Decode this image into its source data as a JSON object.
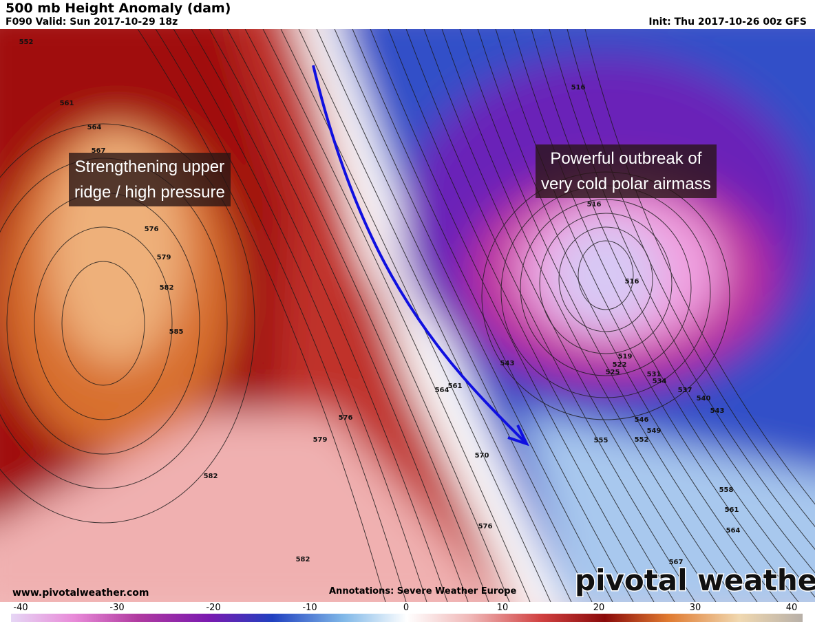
{
  "header": {
    "title": "500 mb Height Anomaly (dam)",
    "valid": "F090 Valid: Sun 2017-10-29 18z",
    "init": "Init: Thu 2017-10-26 00z GFS"
  },
  "map": {
    "contour_labels": [
      552,
      561,
      564,
      567,
      576,
      579,
      582,
      585,
      576,
      579,
      582,
      570,
      576,
      582,
      516,
      516,
      516,
      519,
      522,
      525,
      531,
      534,
      537,
      540,
      543,
      543,
      546,
      549,
      552,
      555,
      558,
      561,
      564,
      567,
      561,
      564
    ],
    "annotations": [
      {
        "lines": [
          "Strengthening upper",
          "ridge / high pressure"
        ]
      },
      {
        "lines": [
          "Powerful outbreak of",
          "very cold polar airmass"
        ]
      }
    ]
  },
  "footer": {
    "website": "www.pivotalweather.com",
    "credit": "Annotations: Severe Weather Europe",
    "logo": "pivotal weather"
  },
  "colorbar": {
    "lim": [
      -40,
      40
    ],
    "ticks": [
      -40,
      -30,
      -20,
      -10,
      0,
      10,
      20,
      30,
      40
    ]
  }
}
